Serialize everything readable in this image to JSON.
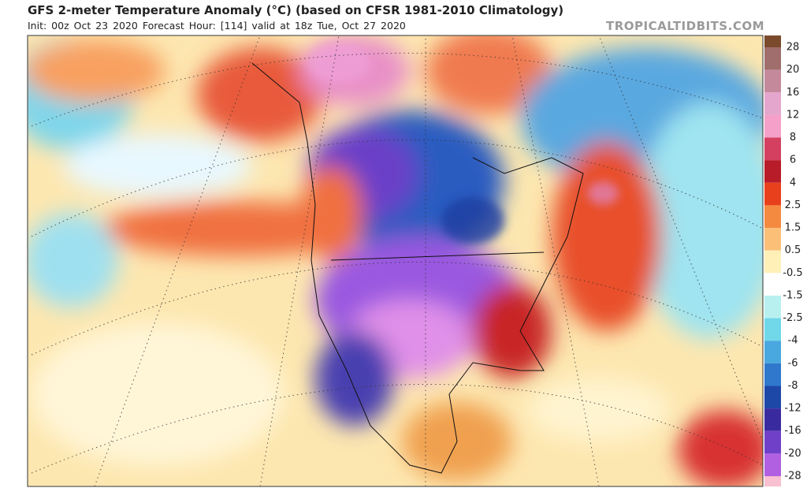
{
  "header": {
    "title": "GFS 2-meter Temperature Anomaly (°C) (based on CFSR 1981-2010 Climatology)",
    "subtitle": "Init: 00z Oct 23 2020   Forecast Hour: [114]   valid at 18z Tue, Oct 27 2020",
    "site": "TROPICALTIDBITS.COM"
  },
  "colorbar": {
    "labels": [
      28,
      20,
      16,
      12,
      8,
      6,
      4,
      2.5,
      1.5,
      0.5,
      -0.5,
      -1.5,
      -2.5,
      -4,
      -6,
      -8,
      -12,
      -16,
      -20,
      -28
    ],
    "colors": [
      "#7b4a2c",
      "#a06e6c",
      "#c48a9c",
      "#e4a6cc",
      "#f4a0c8",
      "#d44060",
      "#b81c28",
      "#e8401c",
      "#f48a40",
      "#fbbf78",
      "#fff0b8",
      "#ffffff",
      "#b8f0f0",
      "#70d8e8",
      "#4aa8e0",
      "#2f78cc",
      "#1e48a8",
      "#3a2aa0",
      "#7040c8",
      "#b060e0",
      "#f8c0d0"
    ]
  }
}
